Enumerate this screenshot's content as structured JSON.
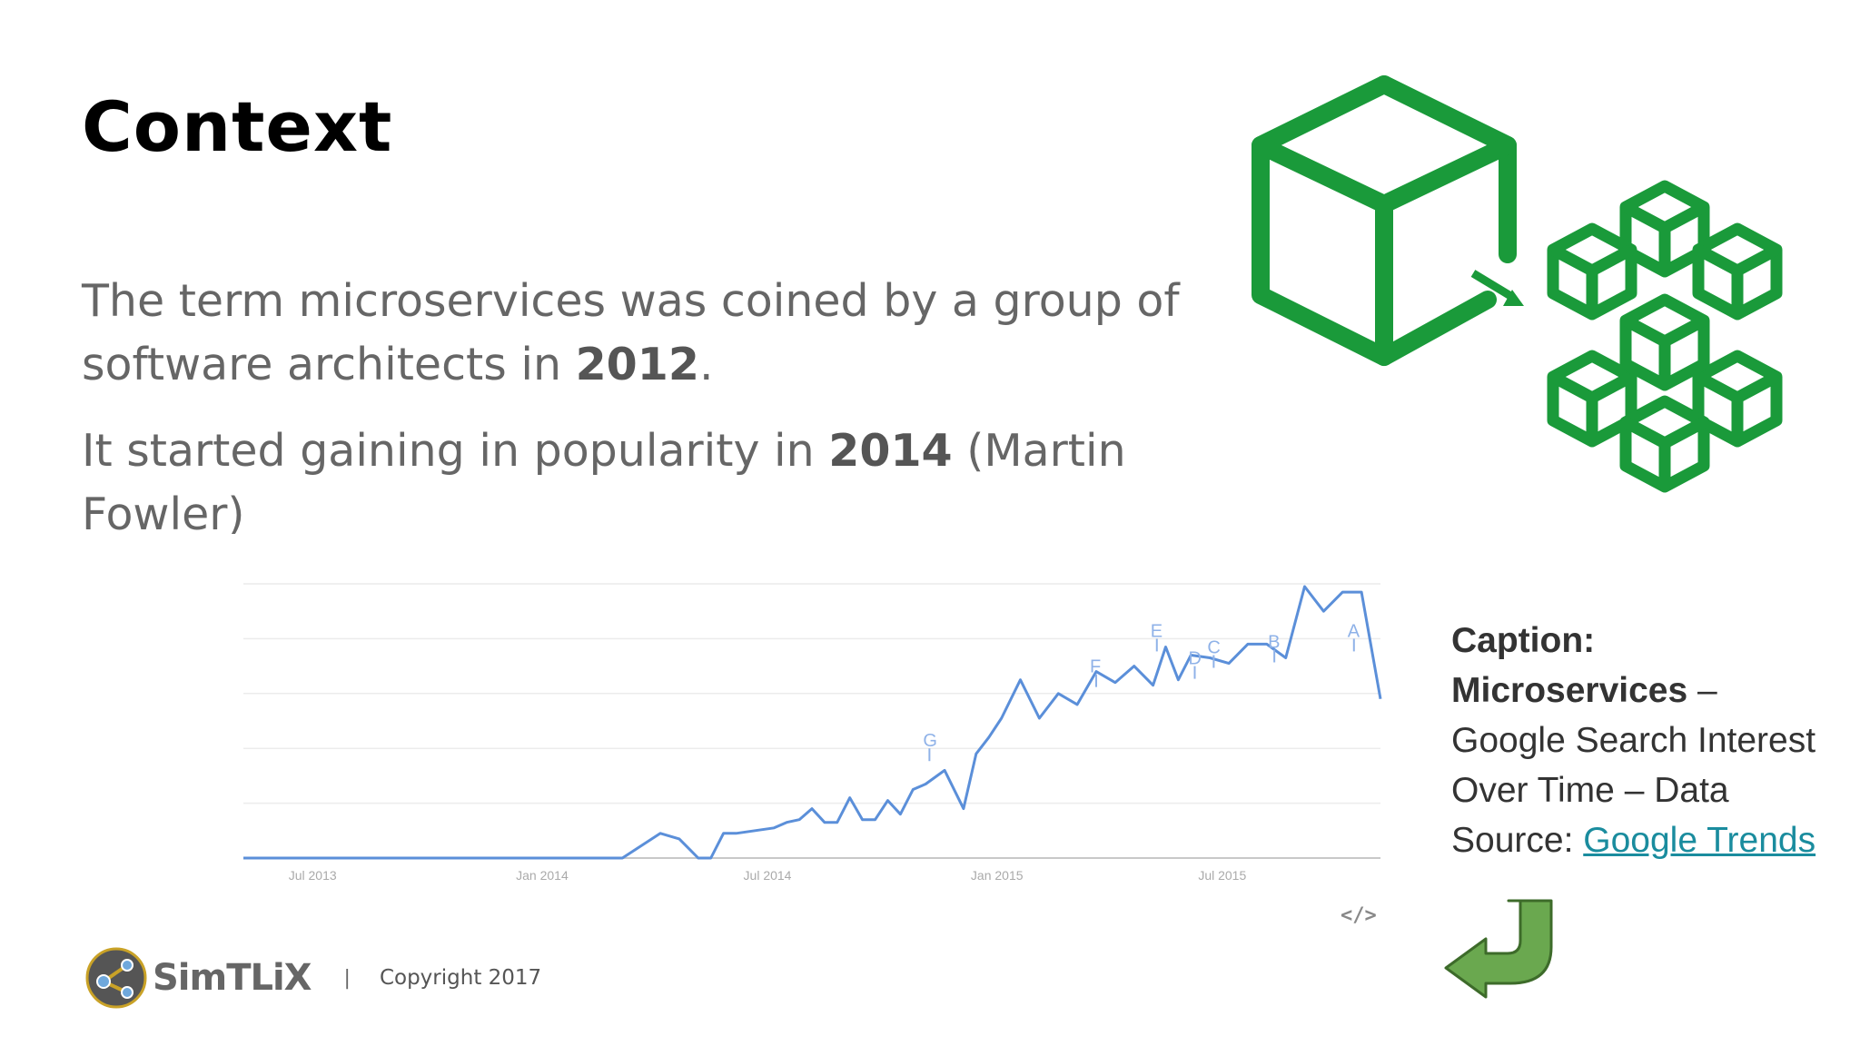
{
  "slide": {
    "title": "Context",
    "para1_a": "The term microservices was coined by a group of software architects in ",
    "para1_bold": "2012",
    "para1_b": ".",
    "para2_a": "It started gaining in popularity in ",
    "para2_bold": "2014",
    "para2_b": " (Martin Fowler)"
  },
  "caption": {
    "label": "Caption:",
    "topic": "Microservices",
    "text1": " – Google Search Interest Over Time – Data Source: ",
    "link": "Google Trends"
  },
  "footer": {
    "brand": "SimTLiX",
    "separator": "|",
    "copyright": "Copyright 2017"
  },
  "icons": {
    "cube_color": "#1a9a3a",
    "arrow_color": "#6aa84f"
  },
  "chart_data": {
    "type": "line",
    "title": "",
    "xlabel": "",
    "ylabel": "",
    "ylim": [
      0,
      100
    ],
    "x_ticks": [
      "Jul 2013",
      "Jan 2014",
      "Jul 2014",
      "Jan 2015",
      "Jul 2015"
    ],
    "grid": true,
    "embed_label": "</>",
    "annotations": [
      {
        "label": "G",
        "x": "Dec 2014"
      },
      {
        "label": "F",
        "x": "Apr 2015"
      },
      {
        "label": "E",
        "x": "Jun 2015"
      },
      {
        "label": "D",
        "x": "Jul 2015"
      },
      {
        "label": "C",
        "x": "Jul 2015"
      },
      {
        "label": "B",
        "x": "Sep 2015"
      },
      {
        "label": "A",
        "x": "Nov 2015"
      }
    ],
    "series": [
      {
        "color": "#5b8fd9",
        "points": [
          [
            "Jun 2013",
            0
          ],
          [
            "Jul 2013",
            0
          ],
          [
            "Oct 2013",
            0
          ],
          [
            "Jan 2014",
            0
          ],
          [
            "Mar 2014",
            0
          ],
          [
            "Apr 2014",
            0
          ],
          [
            "May 2014",
            9
          ],
          [
            "May 2014",
            7
          ],
          [
            "Jun 2014",
            0
          ],
          [
            "Jun 2014",
            0
          ],
          [
            "Jun 2014",
            9
          ],
          [
            "Jul 2014",
            9
          ],
          [
            "Jul 2014",
            10
          ],
          [
            "Aug 2014",
            11
          ],
          [
            "Aug 2014",
            13
          ],
          [
            "Aug 2014",
            14
          ],
          [
            "Sep 2014",
            18
          ],
          [
            "Sep 2014",
            13
          ],
          [
            "Sep 2014",
            13
          ],
          [
            "Oct 2014",
            22
          ],
          [
            "Oct 2014",
            14
          ],
          [
            "Oct 2014",
            14
          ],
          [
            "Nov 2014",
            21
          ],
          [
            "Nov 2014",
            16
          ],
          [
            "Nov 2014",
            25
          ],
          [
            "Dec 2014",
            27
          ],
          [
            "Dec 2014",
            32
          ],
          [
            "Jan 2015",
            18
          ],
          [
            "Jan 2015",
            38
          ],
          [
            "Jan 2015",
            44
          ],
          [
            "Feb 2015",
            51
          ],
          [
            "Feb 2015",
            65
          ],
          [
            "Mar 2015",
            51
          ],
          [
            "Mar 2015",
            60
          ],
          [
            "Apr 2015",
            56
          ],
          [
            "Apr 2015",
            68
          ],
          [
            "May 2015",
            64
          ],
          [
            "May 2015",
            70
          ],
          [
            "Jun 2015",
            63
          ],
          [
            "Jun 2015",
            77
          ],
          [
            "Jun 2015",
            65
          ],
          [
            "Jul 2015",
            74
          ],
          [
            "Jul 2015",
            73
          ],
          [
            "Aug 2015",
            71
          ],
          [
            "Aug 2015",
            78
          ],
          [
            "Sep 2015",
            78
          ],
          [
            "Sep 2015",
            73
          ],
          [
            "Oct 2015",
            99
          ],
          [
            "Oct 2015",
            90
          ],
          [
            "Nov 2015",
            97
          ],
          [
            "Nov 2015",
            97
          ],
          [
            "Dec 2015",
            58
          ]
        ]
      }
    ]
  }
}
